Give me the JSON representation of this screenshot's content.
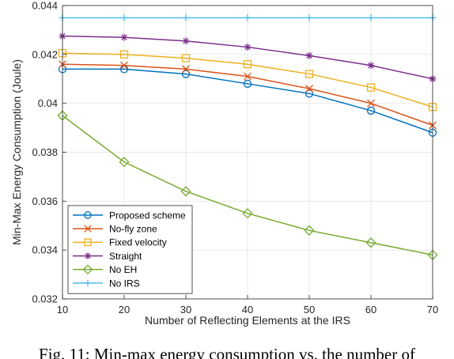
{
  "caption": "Fig. 11: Min-max energy consumption vs. the number of",
  "chart_data": {
    "type": "line",
    "xlabel": "Number of Reflecting Elements at the IRS",
    "ylabel": "Min-Max Energy Consumption (Joule)",
    "x": [
      10,
      20,
      30,
      40,
      50,
      60,
      70
    ],
    "xlim": [
      10,
      70
    ],
    "ylim": [
      0.032,
      0.044
    ],
    "xticks": [
      "10",
      "20",
      "30",
      "40",
      "50",
      "60",
      "70"
    ],
    "yticks": [
      "0.032",
      "0.034",
      "0.036",
      "0.038",
      "0.04",
      "0.042",
      "0.044"
    ],
    "grid": true,
    "legend_position": "lower-left",
    "series": [
      {
        "name": "Proposed scheme",
        "color": "#0072BD",
        "marker": "circle",
        "values": [
          0.0414,
          0.0414,
          0.0412,
          0.0408,
          0.0404,
          0.0397,
          0.0388
        ]
      },
      {
        "name": "No-fly zone",
        "color": "#D95319",
        "marker": "x",
        "values": [
          0.0416,
          0.04155,
          0.0414,
          0.0411,
          0.0406,
          0.04,
          0.0391
        ]
      },
      {
        "name": "Fixed velocity",
        "color": "#EDB120",
        "marker": "square",
        "values": [
          0.04205,
          0.042,
          0.04185,
          0.0416,
          0.0412,
          0.04065,
          0.03985
        ]
      },
      {
        "name": "Straight",
        "color": "#7E2F8E",
        "marker": "asterisk",
        "values": [
          0.04275,
          0.0427,
          0.04255,
          0.0423,
          0.04195,
          0.04155,
          0.041
        ]
      },
      {
        "name": "No EH",
        "color": "#77AC30",
        "marker": "diamond",
        "values": [
          0.0395,
          0.0376,
          0.0364,
          0.0355,
          0.0348,
          0.0343,
          0.0338
        ]
      },
      {
        "name": "No IRS",
        "color": "#4DBEEE",
        "marker": "plus",
        "values": [
          0.0435,
          0.0435,
          0.0435,
          0.0435,
          0.0435,
          0.0435,
          0.0435
        ]
      }
    ]
  }
}
